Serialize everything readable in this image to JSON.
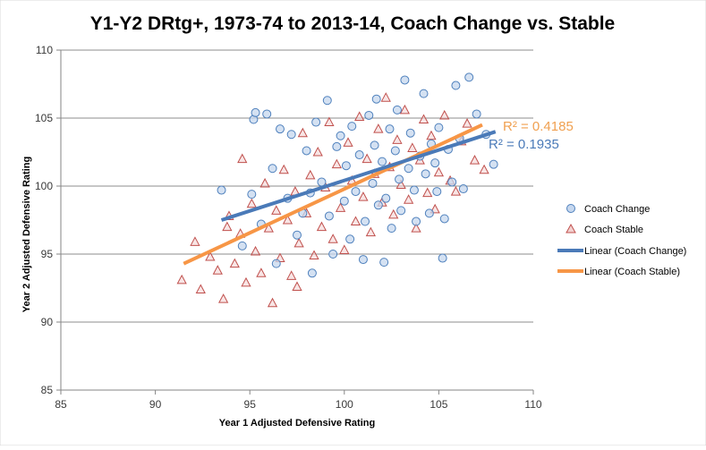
{
  "chart_data": {
    "type": "scatter",
    "title": "Y1-Y2 DRtg+, 1973-74 to 2013-14, Coach Change vs. Stable",
    "xlabel": "Year 1 Adjusted Defensive Rating",
    "ylabel": "Year 2 Adjusted Defensive Rating",
    "xlim": [
      85,
      110
    ],
    "ylim": [
      85,
      110
    ],
    "x_ticks": [
      "85",
      "90",
      "95",
      "100",
      "105",
      "110"
    ],
    "y_ticks": [
      "85",
      "90",
      "95",
      "100",
      "105",
      "110"
    ],
    "grid": "horizontal",
    "legend_position": "right",
    "series": [
      {
        "name": "Coach Change",
        "marker": "circle",
        "color": "#4f81bd",
        "fill": "#c6d7ee",
        "points": [
          [
            93.5,
            99.7
          ],
          [
            94.6,
            95.6
          ],
          [
            95.1,
            99.4
          ],
          [
            95.2,
            104.9
          ],
          [
            95.3,
            105.4
          ],
          [
            95.6,
            97.2
          ],
          [
            95.9,
            105.3
          ],
          [
            96.2,
            101.3
          ],
          [
            96.4,
            94.3
          ],
          [
            96.6,
            104.2
          ],
          [
            97.0,
            99.1
          ],
          [
            97.2,
            103.8
          ],
          [
            97.5,
            96.4
          ],
          [
            97.8,
            98.0
          ],
          [
            98.0,
            102.6
          ],
          [
            98.2,
            99.5
          ],
          [
            98.3,
            93.6
          ],
          [
            98.5,
            104.7
          ],
          [
            98.8,
            100.3
          ],
          [
            99.1,
            106.3
          ],
          [
            99.2,
            97.8
          ],
          [
            99.4,
            95.0
          ],
          [
            99.6,
            102.9
          ],
          [
            99.8,
            103.7
          ],
          [
            100.0,
            98.9
          ],
          [
            100.1,
            101.5
          ],
          [
            100.3,
            96.1
          ],
          [
            100.4,
            104.4
          ],
          [
            100.6,
            99.6
          ],
          [
            100.8,
            102.3
          ],
          [
            101.0,
            94.6
          ],
          [
            101.1,
            97.4
          ],
          [
            101.3,
            105.2
          ],
          [
            101.5,
            100.2
          ],
          [
            101.6,
            103.0
          ],
          [
            101.8,
            98.6
          ],
          [
            102.0,
            101.8
          ],
          [
            102.1,
            94.4
          ],
          [
            102.2,
            99.1
          ],
          [
            102.4,
            104.2
          ],
          [
            102.5,
            96.9
          ],
          [
            102.7,
            102.6
          ],
          [
            102.9,
            100.5
          ],
          [
            103.0,
            98.2
          ],
          [
            103.2,
            107.8
          ],
          [
            103.4,
            101.3
          ],
          [
            103.5,
            103.9
          ],
          [
            103.7,
            99.7
          ],
          [
            103.8,
            97.4
          ],
          [
            104.0,
            102.2
          ],
          [
            104.2,
            106.8
          ],
          [
            104.3,
            100.9
          ],
          [
            104.5,
            98.0
          ],
          [
            104.6,
            103.1
          ],
          [
            104.8,
            101.7
          ],
          [
            104.9,
            99.6
          ],
          [
            105.0,
            104.3
          ],
          [
            105.2,
            94.7
          ],
          [
            105.3,
            97.6
          ],
          [
            105.5,
            102.7
          ],
          [
            105.7,
            100.3
          ],
          [
            105.9,
            107.4
          ],
          [
            106.1,
            103.5
          ],
          [
            106.3,
            99.8
          ],
          [
            106.6,
            108.0
          ],
          [
            107.0,
            105.3
          ],
          [
            107.5,
            103.8
          ],
          [
            107.9,
            101.6
          ],
          [
            102.8,
            105.6
          ],
          [
            101.7,
            106.4
          ]
        ],
        "trendline": {
          "name": "Linear (Coach Change)",
          "color": "#4a7ab8",
          "x": [
            93.5,
            108.0
          ],
          "y": [
            97.5,
            104.0
          ],
          "r2": "0.1935"
        }
      },
      {
        "name": "Coach Stable",
        "marker": "triangle",
        "color": "#c0504d",
        "fill": "#f2d0cf",
        "points": [
          [
            91.4,
            93.1
          ],
          [
            92.1,
            95.9
          ],
          [
            92.4,
            92.4
          ],
          [
            92.9,
            94.8
          ],
          [
            93.3,
            93.8
          ],
          [
            93.6,
            91.7
          ],
          [
            93.9,
            97.8
          ],
          [
            94.2,
            94.3
          ],
          [
            94.5,
            96.5
          ],
          [
            94.8,
            92.9
          ],
          [
            95.1,
            98.7
          ],
          [
            95.3,
            95.2
          ],
          [
            95.6,
            93.6
          ],
          [
            95.8,
            100.2
          ],
          [
            96.0,
            96.9
          ],
          [
            96.2,
            91.4
          ],
          [
            96.4,
            98.2
          ],
          [
            96.6,
            94.7
          ],
          [
            96.8,
            101.2
          ],
          [
            97.0,
            97.5
          ],
          [
            97.2,
            93.4
          ],
          [
            97.4,
            99.6
          ],
          [
            97.6,
            95.8
          ],
          [
            97.8,
            103.9
          ],
          [
            98.0,
            98.0
          ],
          [
            98.2,
            100.8
          ],
          [
            98.4,
            94.9
          ],
          [
            98.6,
            102.5
          ],
          [
            98.8,
            97.0
          ],
          [
            99.0,
            99.9
          ],
          [
            99.2,
            104.7
          ],
          [
            99.4,
            96.1
          ],
          [
            99.6,
            101.6
          ],
          [
            99.8,
            98.4
          ],
          [
            100.0,
            95.3
          ],
          [
            100.2,
            103.2
          ],
          [
            100.4,
            100.4
          ],
          [
            100.6,
            97.4
          ],
          [
            100.8,
            105.1
          ],
          [
            101.0,
            99.2
          ],
          [
            101.2,
            102.0
          ],
          [
            101.4,
            96.6
          ],
          [
            101.6,
            100.9
          ],
          [
            101.8,
            104.2
          ],
          [
            102.0,
            98.8
          ],
          [
            102.2,
            106.5
          ],
          [
            102.4,
            101.4
          ],
          [
            102.6,
            97.9
          ],
          [
            102.8,
            103.4
          ],
          [
            103.0,
            100.1
          ],
          [
            103.2,
            105.6
          ],
          [
            103.4,
            99.0
          ],
          [
            103.6,
            102.8
          ],
          [
            103.8,
            96.9
          ],
          [
            104.0,
            101.9
          ],
          [
            104.2,
            104.9
          ],
          [
            104.4,
            99.5
          ],
          [
            104.6,
            103.7
          ],
          [
            104.8,
            98.3
          ],
          [
            105.0,
            101.0
          ],
          [
            105.3,
            105.2
          ],
          [
            105.6,
            100.4
          ],
          [
            105.9,
            99.6
          ],
          [
            106.2,
            103.3
          ],
          [
            106.5,
            104.6
          ],
          [
            106.9,
            101.9
          ],
          [
            107.4,
            101.2
          ],
          [
            94.6,
            102.0
          ],
          [
            93.8,
            97.0
          ],
          [
            97.5,
            92.6
          ]
        ],
        "trendline": {
          "name": "Linear (Coach Stable)",
          "color": "#f79646",
          "x": [
            91.5,
            107.3
          ],
          "y": [
            94.3,
            104.5
          ],
          "r2": "0.4185"
        }
      }
    ],
    "annotations": {
      "r2_stable": "R² = 0.4185",
      "r2_change": "R² = 0.1935"
    }
  }
}
